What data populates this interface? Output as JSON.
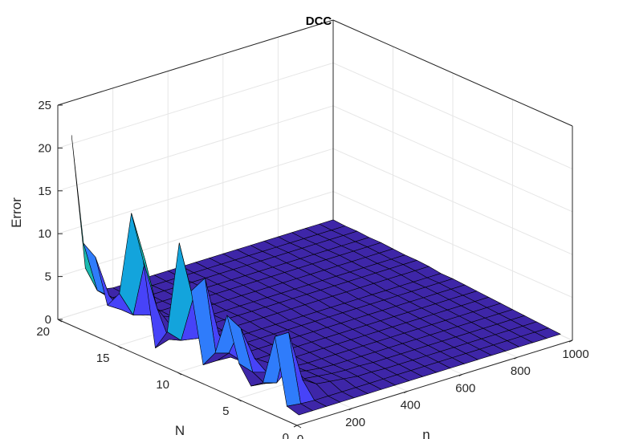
{
  "chart_data": {
    "type": "surface",
    "title": "DCC",
    "xlabel": "n",
    "ylabel": "N",
    "zlabel": "Error",
    "xlim": [
      0,
      1000
    ],
    "ylim": [
      0,
      20
    ],
    "zlim": [
      0,
      25
    ],
    "x_ticks": [
      "0",
      "200",
      "400",
      "600",
      "800",
      "1000"
    ],
    "y_ticks": [
      "0",
      "5",
      "10",
      "15",
      "20"
    ],
    "z_ticks": [
      "0",
      "5",
      "10",
      "15",
      "20",
      "25"
    ],
    "grid": true,
    "colormap": "parula",
    "x": [
      50,
      100,
      150,
      200,
      250,
      300,
      350,
      400,
      450,
      500,
      550,
      600,
      650,
      700,
      750,
      800,
      850,
      900,
      950,
      1000
    ],
    "y": [
      1,
      2,
      3,
      4,
      5,
      6,
      7,
      8,
      9,
      10,
      11,
      12,
      13,
      14,
      15,
      16,
      17,
      18,
      19,
      20
    ],
    "z": [
      [
        0.1,
        0.1,
        0.1,
        0.1,
        0.1,
        0.1,
        0.1,
        0.1,
        0.1,
        0.1,
        0.1,
        0.1,
        0.1,
        0.1,
        0.1,
        0.1,
        0.1,
        0.1,
        0.1,
        0.1
      ],
      [
        0.5,
        0.3,
        0.2,
        0.2,
        0.2,
        0.2,
        0.2,
        0.2,
        0.2,
        0.2,
        0.2,
        0.2,
        0.2,
        0.2,
        0.2,
        0.2,
        0.2,
        0.2,
        0.2,
        0.2
      ],
      [
        8.0,
        8.0,
        2.0,
        1.0,
        0.8,
        0.6,
        0.4,
        0.4,
        0.3,
        0.3,
        0.3,
        0.3,
        0.3,
        0.3,
        0.3,
        0.3,
        0.3,
        0.3,
        0.3,
        0.3
      ],
      [
        2.0,
        1.5,
        3.0,
        1.0,
        0.8,
        0.6,
        0.5,
        0.5,
        0.4,
        0.4,
        0.4,
        0.4,
        0.4,
        0.4,
        0.4,
        0.4,
        0.4,
        0.4,
        0.4,
        0.4
      ],
      [
        1.0,
        0.8,
        1.5,
        1.2,
        0.8,
        0.6,
        0.5,
        0.5,
        0.5,
        0.5,
        0.5,
        0.5,
        0.5,
        0.5,
        0.5,
        0.5,
        0.5,
        0.5,
        0.5,
        0.5
      ],
      [
        3.0,
        1.5,
        1.0,
        0.8,
        0.7,
        0.6,
        0.6,
        0.6,
        0.6,
        0.6,
        0.6,
        0.6,
        0.6,
        0.6,
        0.6,
        0.6,
        0.6,
        0.6,
        0.6,
        0.6
      ],
      [
        8.0,
        6.0,
        2.0,
        1.0,
        0.8,
        0.7,
        0.7,
        0.7,
        0.7,
        0.7,
        0.7,
        0.7,
        0.7,
        0.7,
        0.7,
        0.7,
        0.7,
        0.7,
        0.7,
        0.7
      ],
      [
        3.0,
        2.5,
        1.0,
        0.8,
        0.8,
        0.8,
        0.8,
        0.8,
        0.8,
        0.8,
        0.8,
        0.8,
        0.8,
        0.8,
        0.8,
        0.8,
        0.8,
        0.8,
        0.8,
        0.8
      ],
      [
        1.0,
        1.0,
        0.9,
        0.9,
        0.9,
        0.9,
        0.9,
        0.9,
        0.9,
        0.9,
        0.9,
        0.9,
        0.9,
        0.9,
        0.9,
        0.9,
        0.9,
        0.9,
        0.9,
        0.9
      ],
      [
        9.0,
        10.0,
        3.0,
        1.2,
        1.0,
        1.0,
        1.0,
        1.0,
        1.0,
        1.0,
        1.0,
        1.0,
        1.0,
        1.0,
        1.0,
        1.0,
        1.0,
        1.0,
        1.0,
        1.0
      ],
      [
        14.0,
        7.0,
        2.0,
        1.2,
        1.0,
        1.0,
        1.0,
        1.0,
        1.0,
        1.0,
        1.0,
        1.0,
        1.0,
        1.0,
        1.0,
        1.0,
        1.0,
        1.0,
        1.0,
        1.0
      ],
      [
        3.0,
        1.5,
        1.2,
        1.2,
        1.2,
        1.2,
        1.2,
        1.2,
        1.2,
        1.2,
        1.2,
        1.2,
        1.2,
        1.2,
        1.2,
        1.2,
        1.2,
        1.2,
        1.2,
        1.2
      ],
      [
        0.5,
        1.0,
        1.2,
        1.3,
        1.3,
        1.3,
        1.3,
        1.3,
        1.3,
        1.3,
        1.3,
        1.3,
        1.3,
        1.3,
        1.3,
        1.3,
        1.3,
        1.3,
        1.3,
        1.3
      ],
      [
        10.0,
        4.0,
        1.5,
        1.3,
        1.3,
        1.3,
        1.3,
        1.3,
        1.3,
        1.3,
        1.3,
        1.3,
        1.3,
        1.3,
        1.3,
        1.3,
        1.3,
        1.3,
        1.3,
        1.3
      ],
      [
        15.0,
        9.0,
        2.0,
        1.4,
        1.4,
        1.4,
        1.4,
        1.4,
        1.4,
        1.4,
        1.4,
        1.4,
        1.4,
        1.4,
        1.4,
        1.4,
        1.4,
        1.4,
        1.4,
        1.4
      ],
      [
        5.0,
        2.0,
        1.5,
        1.5,
        1.5,
        1.5,
        1.5,
        1.5,
        1.5,
        1.5,
        1.5,
        1.5,
        1.5,
        1.5,
        1.5,
        1.5,
        1.5,
        1.5,
        1.5,
        1.5
      ],
      [
        3.0,
        2.0,
        1.5,
        1.5,
        1.5,
        1.5,
        1.5,
        1.5,
        1.5,
        1.5,
        1.5,
        1.5,
        1.5,
        1.5,
        1.5,
        1.5,
        1.5,
        1.5,
        1.5,
        1.5
      ],
      [
        8.0,
        3.0,
        1.6,
        1.6,
        1.6,
        1.6,
        1.6,
        1.6,
        1.6,
        1.6,
        1.6,
        1.6,
        1.6,
        1.6,
        1.6,
        1.6,
        1.6,
        1.6,
        1.6,
        1.6
      ],
      [
        9.0,
        3.0,
        1.6,
        1.6,
        1.6,
        1.6,
        1.6,
        1.6,
        1.6,
        1.6,
        1.6,
        1.6,
        1.6,
        1.6,
        1.6,
        1.6,
        1.6,
        1.6,
        1.6,
        1.6
      ],
      [
        21.0,
        5.0,
        2.0,
        1.7,
        1.7,
        1.7,
        1.7,
        1.7,
        1.7,
        1.7,
        1.7,
        1.7,
        1.7,
        1.7,
        1.7,
        1.7,
        1.7,
        1.7,
        1.7,
        1.7
      ]
    ]
  },
  "colors": {
    "background": "#ffffff",
    "axis": "#262626",
    "grid": "#e6e6e6",
    "edge": "#000000",
    "parula": [
      "#3e26a8",
      "#4743f8",
      "#2f7cfb",
      "#13a4dc",
      "#19b9b0",
      "#50c47a",
      "#a6c43e",
      "#efb933",
      "#fbd82a",
      "#f9fb0e"
    ]
  }
}
